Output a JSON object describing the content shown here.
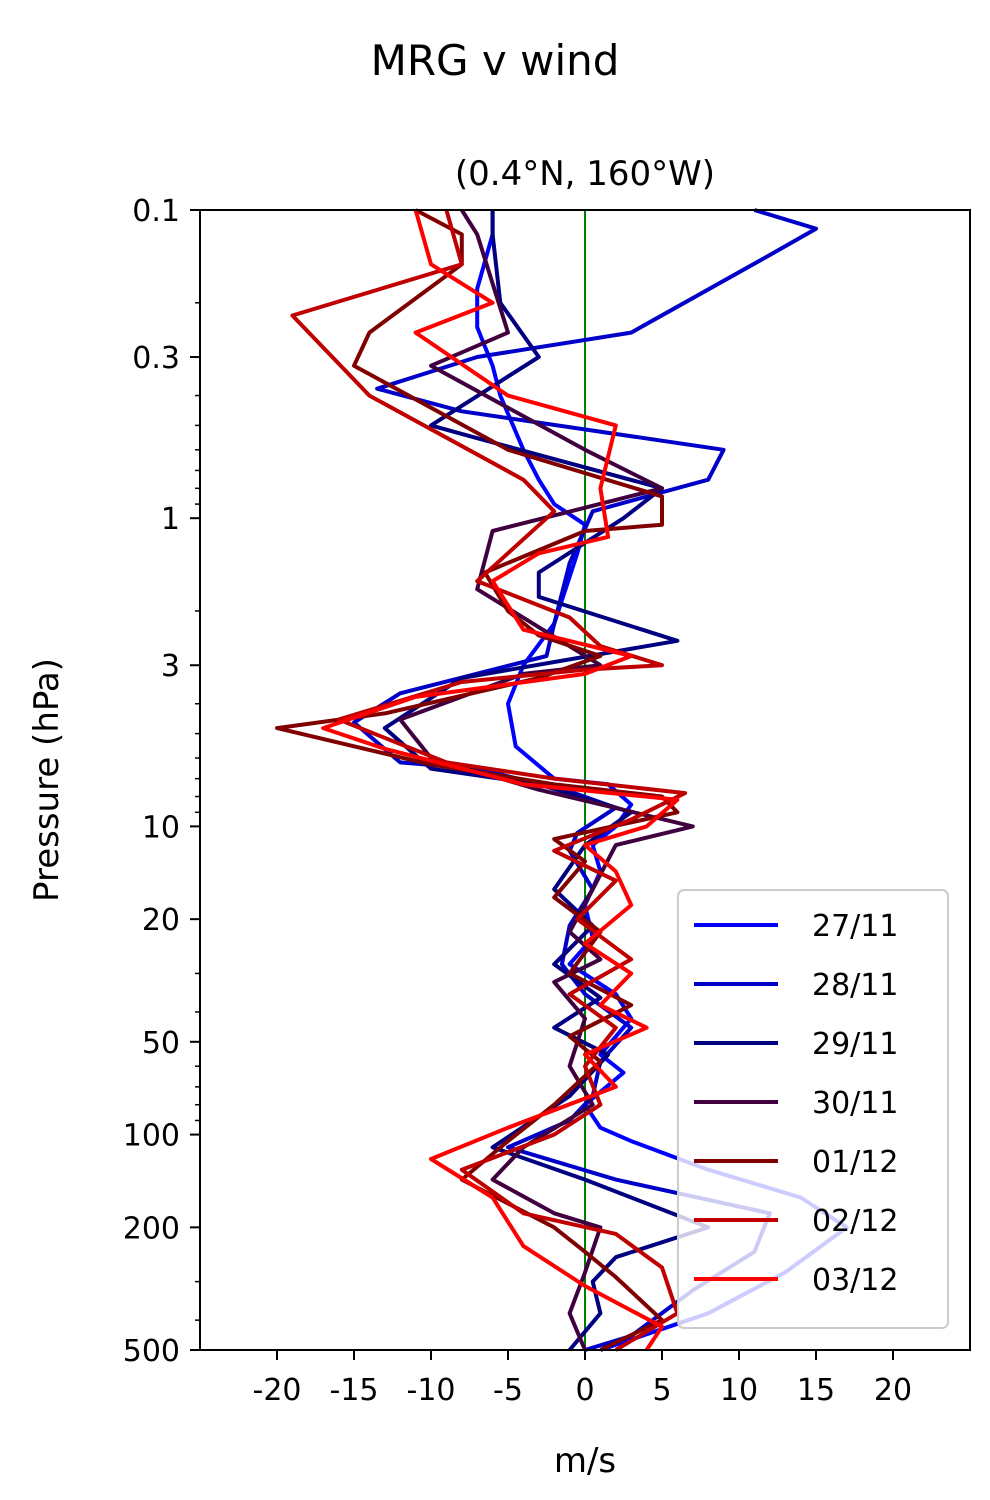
{
  "chart_data": {
    "type": "line",
    "suptitle": "MRG v wind",
    "title": "(0.4°N, 160°W)",
    "xlabel": "m/s",
    "ylabel": "Pressure (hPa)",
    "xlim": [
      -25,
      25
    ],
    "ylim": [
      500,
      0.1
    ],
    "yscale": "log",
    "xticks": [
      -20,
      -15,
      -10,
      -5,
      0,
      5,
      10,
      15,
      20
    ],
    "xtick_labels": [
      "-20",
      "-15",
      "-10",
      "-5",
      "0",
      "5",
      "10",
      "15",
      "20"
    ],
    "yticks": [
      0.1,
      0.3,
      1,
      3,
      10,
      20,
      50,
      100,
      200,
      500
    ],
    "ytick_labels": [
      "0.1",
      "0.3",
      "1",
      "3",
      "10",
      "20",
      "50",
      "100",
      "200",
      "500"
    ],
    "zero_line_color": "#008000",
    "legend_position": "lower-right",
    "series": [
      {
        "name": "27/11",
        "color": "#0000ff",
        "points": [
          [
            -6,
            0.1
          ],
          [
            -6,
            0.12
          ],
          [
            -7,
            0.18
          ],
          [
            -7,
            0.24
          ],
          [
            -6,
            0.32
          ],
          [
            -5.5,
            0.4
          ],
          [
            -4,
            0.6
          ],
          [
            -3,
            0.75
          ],
          [
            -2,
            0.9
          ],
          [
            0,
            1.05
          ],
          [
            -0.5,
            1.3
          ],
          [
            -2,
            2.2
          ],
          [
            -4,
            3
          ],
          [
            -5,
            4
          ],
          [
            -4.5,
            5.5
          ],
          [
            -2,
            7
          ],
          [
            1.5,
            7.3
          ],
          [
            3,
            8.5
          ],
          [
            2,
            10
          ],
          [
            0.5,
            11.5
          ],
          [
            1,
            14
          ],
          [
            0,
            18
          ],
          [
            0.5,
            23
          ],
          [
            -1,
            28
          ],
          [
            2,
            35
          ],
          [
            3,
            42
          ],
          [
            1,
            55
          ],
          [
            2.5,
            63
          ],
          [
            0,
            80
          ],
          [
            1,
            95
          ],
          [
            3,
            105
          ],
          [
            8,
            130
          ],
          [
            14,
            160
          ],
          [
            17,
            200
          ],
          [
            13,
            280
          ],
          [
            8,
            380
          ],
          [
            1,
            500
          ]
        ]
      },
      {
        "name": "28/11",
        "color": "#0000c8",
        "points": [
          [
            11,
            0.1
          ],
          [
            15,
            0.115
          ],
          [
            12,
            0.14
          ],
          [
            3,
            0.25
          ],
          [
            -7,
            0.3
          ],
          [
            -13.5,
            0.38
          ],
          [
            -8,
            0.45
          ],
          [
            9,
            0.6
          ],
          [
            8,
            0.75
          ],
          [
            0.5,
            0.95
          ],
          [
            -1,
            1.4
          ],
          [
            -2,
            2.2
          ],
          [
            -2.5,
            2.8
          ],
          [
            -12,
            3.7
          ],
          [
            -15,
            4.6
          ],
          [
            -12,
            6.2
          ],
          [
            -7,
            6.5
          ],
          [
            -1,
            7.7
          ],
          [
            2,
            8.7
          ],
          [
            -0.5,
            10.5
          ],
          [
            -1,
            12
          ],
          [
            0.5,
            16
          ],
          [
            -1,
            21
          ],
          [
            -1.5,
            28
          ],
          [
            0,
            35
          ],
          [
            3,
            45
          ],
          [
            1,
            58
          ],
          [
            0.5,
            75
          ],
          [
            -1,
            90
          ],
          [
            -5,
            110
          ],
          [
            2,
            140
          ],
          [
            12,
            180
          ],
          [
            11,
            240
          ],
          [
            7,
            320
          ],
          [
            3,
            450
          ],
          [
            0,
            500
          ]
        ]
      },
      {
        "name": "29/11",
        "color": "#000080",
        "points": [
          [
            -6,
            0.1
          ],
          [
            -6,
            0.12
          ],
          [
            -5.5,
            0.2
          ],
          [
            -3,
            0.3
          ],
          [
            -10,
            0.5
          ],
          [
            -7,
            0.55
          ],
          [
            5,
            0.8
          ],
          [
            2.5,
            1
          ],
          [
            -3,
            1.5
          ],
          [
            -3,
            1.8
          ],
          [
            6,
            2.5
          ],
          [
            -8,
            3.3
          ],
          [
            -13,
            4.8
          ],
          [
            -10,
            6.5
          ],
          [
            -3,
            7.3
          ],
          [
            3,
            9
          ],
          [
            0,
            11.5
          ],
          [
            -2,
            16
          ],
          [
            0.5,
            21
          ],
          [
            -2,
            28
          ],
          [
            1,
            36
          ],
          [
            -2,
            45
          ],
          [
            1.5,
            55
          ],
          [
            -1,
            75
          ],
          [
            -6,
            110
          ],
          [
            0,
            140
          ],
          [
            8,
            200
          ],
          [
            2,
            250
          ],
          [
            0.5,
            300
          ],
          [
            1,
            380
          ],
          [
            -1,
            500
          ]
        ]
      },
      {
        "name": "30/11",
        "color": "#400040",
        "points": [
          [
            -8,
            0.1
          ],
          [
            -7,
            0.12
          ],
          [
            -5,
            0.25
          ],
          [
            -10,
            0.32
          ],
          [
            0,
            0.6
          ],
          [
            5,
            0.8
          ],
          [
            -6,
            1.1
          ],
          [
            -7,
            1.7
          ],
          [
            1,
            3
          ],
          [
            -4,
            3.2
          ],
          [
            -12,
            4.5
          ],
          [
            -10,
            6
          ],
          [
            -3,
            7.6
          ],
          [
            7,
            10
          ],
          [
            2,
            11.5
          ],
          [
            0.5,
            16
          ],
          [
            -1,
            22
          ],
          [
            1,
            27
          ],
          [
            -2,
            32
          ],
          [
            0,
            42
          ],
          [
            -1,
            60
          ],
          [
            0.5,
            80
          ],
          [
            -4,
            110
          ],
          [
            -6,
            140
          ],
          [
            -2,
            180
          ],
          [
            1,
            200
          ],
          [
            0,
            280
          ],
          [
            -1,
            380
          ],
          [
            0,
            500
          ]
        ]
      },
      {
        "name": "01/12",
        "color": "#800000",
        "points": [
          [
            -11,
            0.1
          ],
          [
            -8,
            0.12
          ],
          [
            -8,
            0.15
          ],
          [
            -14,
            0.25
          ],
          [
            -15,
            0.32
          ],
          [
            -5,
            0.6
          ],
          [
            5,
            0.85
          ],
          [
            5,
            1.05
          ],
          [
            0,
            1.1
          ],
          [
            -6.5,
            1.5
          ],
          [
            -5,
            2
          ],
          [
            -3,
            2.4
          ],
          [
            1,
            2.8
          ],
          [
            -3,
            3.3
          ],
          [
            -13,
            4.3
          ],
          [
            -20,
            4.8
          ],
          [
            -10,
            6.3
          ],
          [
            -2,
            7.3
          ],
          [
            5,
            8
          ],
          [
            6,
            9
          ],
          [
            -2,
            11
          ],
          [
            0,
            13
          ],
          [
            -2,
            17
          ],
          [
            1,
            22
          ],
          [
            -1,
            30
          ],
          [
            3,
            38
          ],
          [
            -1,
            48
          ],
          [
            1,
            58
          ],
          [
            -2,
            80
          ],
          [
            -5,
            105
          ],
          [
            -8,
            140
          ],
          [
            -2,
            200
          ],
          [
            0,
            240
          ],
          [
            2,
            290
          ],
          [
            5,
            400
          ],
          [
            1,
            500
          ]
        ]
      },
      {
        "name": "02/12",
        "color": "#c00000",
        "points": [
          [
            -9,
            0.1
          ],
          [
            -8,
            0.15
          ],
          [
            -19,
            0.22
          ],
          [
            -14,
            0.4
          ],
          [
            -4,
            0.75
          ],
          [
            -2,
            0.95
          ],
          [
            -7,
            1.6
          ],
          [
            -1,
            2.1
          ],
          [
            1,
            2.6
          ],
          [
            5,
            3
          ],
          [
            0,
            3.1
          ],
          [
            -8,
            3.4
          ],
          [
            -16,
            4.5
          ],
          [
            -9,
            6.2
          ],
          [
            -2,
            7
          ],
          [
            6.5,
            7.8
          ],
          [
            3,
            9.5
          ],
          [
            -2,
            12
          ],
          [
            2,
            15
          ],
          [
            -0.5,
            20
          ],
          [
            3,
            27
          ],
          [
            -1,
            35
          ],
          [
            2,
            45
          ],
          [
            0,
            60
          ],
          [
            1,
            80
          ],
          [
            -2,
            100
          ],
          [
            -8,
            130
          ],
          [
            -4,
            180
          ],
          [
            2,
            210
          ],
          [
            5,
            270
          ],
          [
            6,
            380
          ],
          [
            2,
            500
          ]
        ]
      },
      {
        "name": "03/12",
        "color": "#ff0000",
        "points": [
          [
            -11,
            0.1
          ],
          [
            -10,
            0.15
          ],
          [
            -6,
            0.2
          ],
          [
            -11,
            0.25
          ],
          [
            -5,
            0.4
          ],
          [
            2,
            0.5
          ],
          [
            1,
            0.8
          ],
          [
            1.5,
            1.15
          ],
          [
            -3,
            1.3
          ],
          [
            -6,
            1.6
          ],
          [
            -4,
            2.3
          ],
          [
            3,
            2.8
          ],
          [
            0,
            3.2
          ],
          [
            -11,
            3.8
          ],
          [
            -17,
            4.8
          ],
          [
            -13,
            5.6
          ],
          [
            -4,
            7.3
          ],
          [
            6,
            8.2
          ],
          [
            4,
            10
          ],
          [
            0,
            11.5
          ],
          [
            2,
            14
          ],
          [
            3,
            18
          ],
          [
            0,
            24
          ],
          [
            3,
            30
          ],
          [
            1,
            38
          ],
          [
            4,
            45
          ],
          [
            0,
            55
          ],
          [
            2,
            70
          ],
          [
            -5,
            95
          ],
          [
            -10,
            120
          ],
          [
            -6,
            160
          ],
          [
            -4,
            230
          ],
          [
            0,
            310
          ],
          [
            5,
            420
          ],
          [
            4,
            500
          ]
        ]
      }
    ]
  }
}
